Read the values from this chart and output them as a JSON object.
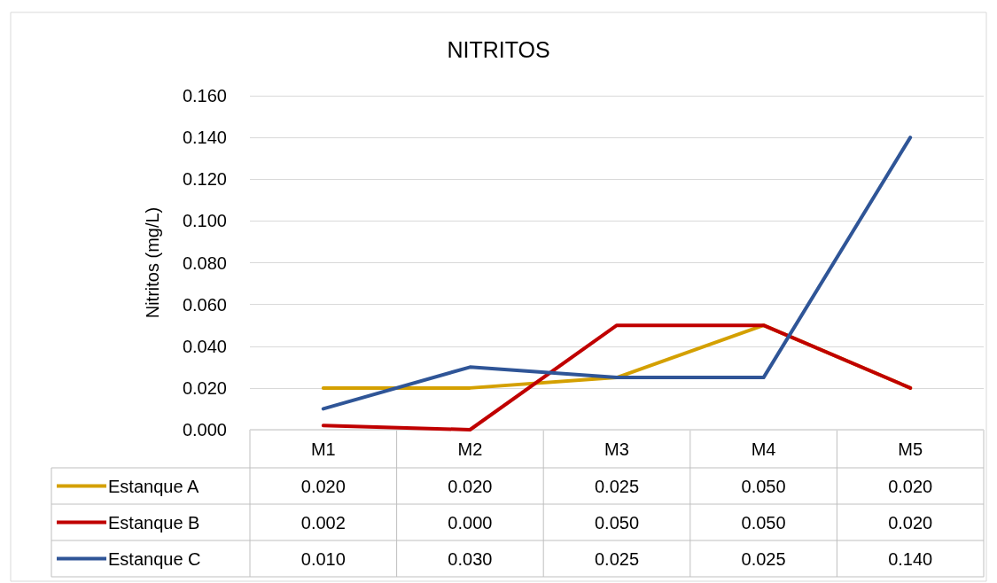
{
  "chart_data": {
    "type": "line",
    "title": "NITRITOS",
    "ylabel": "Nitritos (mg/L)",
    "categories": [
      "M1",
      "M2",
      "M3",
      "M4",
      "M5"
    ],
    "series": [
      {
        "name": "Estanque A",
        "color": "#d4a000",
        "values": [
          0.02,
          0.02,
          0.025,
          0.05,
          0.02
        ],
        "value_labels": [
          "0.020",
          "0.020",
          "0.025",
          "0.050",
          "0.020"
        ]
      },
      {
        "name": "Estanque B",
        "color": "#c00000",
        "values": [
          0.002,
          0,
          0.05,
          0.05,
          0.02
        ],
        "value_labels": [
          "0.002",
          "0.000",
          "0.050",
          "0.050",
          "0.020"
        ]
      },
      {
        "name": "Estanque C",
        "color": "#2f5597",
        "values": [
          0.01,
          0.03,
          0.025,
          0.025,
          0.14
        ],
        "value_labels": [
          "0.010",
          "0.030",
          "0.025",
          "0.025",
          "0.140"
        ]
      }
    ],
    "ylim": [
      0,
      0.16
    ],
    "yticks": [
      {
        "value": 0,
        "label": "0.000"
      },
      {
        "value": 0.02,
        "label": "0.020"
      },
      {
        "value": 0.04,
        "label": "0.040"
      },
      {
        "value": 0.06,
        "label": "0.060"
      },
      {
        "value": 0.08,
        "label": "0.080"
      },
      {
        "value": 0.1,
        "label": "0.100"
      },
      {
        "value": 0.12,
        "label": "0.120"
      },
      {
        "value": 0.14,
        "label": "0.140"
      },
      {
        "value": 0.16,
        "label": "0.160"
      }
    ],
    "grid": "y",
    "legend": "bottom",
    "marker": "none",
    "line_style": "solid"
  }
}
